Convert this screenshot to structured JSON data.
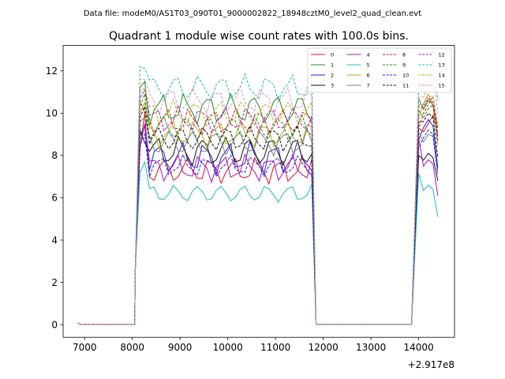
{
  "chart_data": {
    "type": "line",
    "suptitle": "Data file: modeM0/AS1T03_090T01_9000002822_18948cztM0_level2_quad_clean.evt",
    "title": "Quadrant 1 module wise count rates with 100.0s bins.",
    "xlabel": "",
    "ylabel": "",
    "x_offset_label": "+2.917e8",
    "xlim": [
      6550,
      14750
    ],
    "ylim": [
      -0.6,
      13.2
    ],
    "xticks": [
      7000,
      8000,
      9000,
      10000,
      11000,
      12000,
      13000,
      14000
    ],
    "xtick_labels": [
      "7000",
      "8000",
      "9000",
      "10000",
      "11000",
      "12000",
      "13000",
      "14000"
    ],
    "yticks": [
      0,
      2,
      4,
      6,
      8,
      10,
      12
    ],
    "ytick_labels": [
      "0",
      "2",
      "4",
      "6",
      "8",
      "10",
      "12"
    ],
    "grid": false,
    "legend_position": "top-right",
    "legend_columns": 4,
    "on_start": 8060,
    "on_end": 11800,
    "on_step": 100,
    "tail_x": [
      14200,
      14300,
      14400
    ],
    "series": [
      {
        "name": "0",
        "color": "#e6121a",
        "dash": "solid",
        "level": 7.3,
        "amp": 0.5,
        "ph": 0.0,
        "peak": 10.0,
        "tail": [
          9.5,
          9.9,
          8.9
        ]
      },
      {
        "name": "1",
        "color": "#1a8f1a",
        "dash": "solid",
        "level": 10.2,
        "amp": 0.6,
        "ph": 0.7,
        "peak": 11.5,
        "tail": [
          10.6,
          10.4,
          9.3
        ]
      },
      {
        "name": "2",
        "color": "#1d1fe0",
        "dash": "solid",
        "level": 7.9,
        "amp": 0.6,
        "ph": 1.4,
        "peak": 9.4,
        "tail": [
          9.7,
          9.4,
          7.4
        ]
      },
      {
        "name": "3",
        "color": "#111111",
        "dash": "solid",
        "level": 8.2,
        "amp": 0.6,
        "ph": 2.1,
        "peak": 8.6,
        "tail": [
          8.1,
          7.9,
          6.8
        ]
      },
      {
        "name": "4",
        "color": "#b012b8",
        "dash": "solid",
        "level": 7.4,
        "amp": 0.5,
        "ph": 2.8,
        "peak": 9.5,
        "tail": [
          7.8,
          7.6,
          6.1
        ]
      },
      {
        "name": "5",
        "color": "#18bcbc",
        "dash": "solid",
        "level": 6.2,
        "amp": 0.35,
        "ph": 3.5,
        "peak": 7.7,
        "tail": [
          6.6,
          6.4,
          5.1
        ]
      },
      {
        "name": "6",
        "color": "#b0b012",
        "dash": "solid",
        "level": 9.0,
        "amp": 0.5,
        "ph": 4.2,
        "peak": 10.5,
        "tail": [
          10.9,
          10.3,
          8.5
        ]
      },
      {
        "name": "7",
        "color": "#7f7f7f",
        "dash": "solid",
        "level": 8.6,
        "amp": 0.5,
        "ph": 4.9,
        "peak": 9.8,
        "tail": [
          9.0,
          8.9,
          7.1
        ]
      },
      {
        "name": "8",
        "color": "#e6121a",
        "dash": "dashed",
        "level": 9.6,
        "amp": 0.5,
        "ph": 5.6,
        "peak": 10.0,
        "tail": [
          10.4,
          10.8,
          9.0
        ]
      },
      {
        "name": "9",
        "color": "#1a8f1a",
        "dash": "dashed",
        "level": 9.3,
        "amp": 0.5,
        "ph": 0.35,
        "peak": 10.9,
        "tail": [
          10.2,
          10.4,
          8.9
        ]
      },
      {
        "name": "10",
        "color": "#1d1fe0",
        "dash": "dashed",
        "level": 7.5,
        "amp": 0.4,
        "ph": 1.05,
        "peak": 9.0,
        "tail": [
          9.2,
          9.0,
          7.2
        ]
      },
      {
        "name": "11",
        "color": "#111111",
        "dash": "dashed",
        "level": 8.8,
        "amp": 0.5,
        "ph": 1.75,
        "peak": 10.3,
        "tail": [
          10.0,
          9.8,
          7.9
        ]
      },
      {
        "name": "12",
        "color": "#b012b8",
        "dash": "dashed",
        "level": 9.7,
        "amp": 0.5,
        "ph": 2.45,
        "peak": 11.1,
        "tail": [
          10.7,
          10.5,
          8.7
        ]
      },
      {
        "name": "13",
        "color": "#18bcbc",
        "dash": "dashed",
        "level": 11.2,
        "amp": 0.5,
        "ph": 3.15,
        "peak": 12.1,
        "tail": [
          11.6,
          12.5,
          10.6
        ]
      },
      {
        "name": "14",
        "color": "#b0b012",
        "dash": "dashed",
        "level": 10.0,
        "amp": 0.5,
        "ph": 3.85,
        "peak": 11.2,
        "tail": [
          10.8,
          10.8,
          9.4
        ]
      },
      {
        "name": "15",
        "color": "#e58cc8",
        "dash": "dashed",
        "level": 10.6,
        "amp": 0.5,
        "ph": 4.55,
        "peak": 11.6,
        "tail": [
          11.2,
          11.9,
          10.0
        ]
      }
    ]
  }
}
